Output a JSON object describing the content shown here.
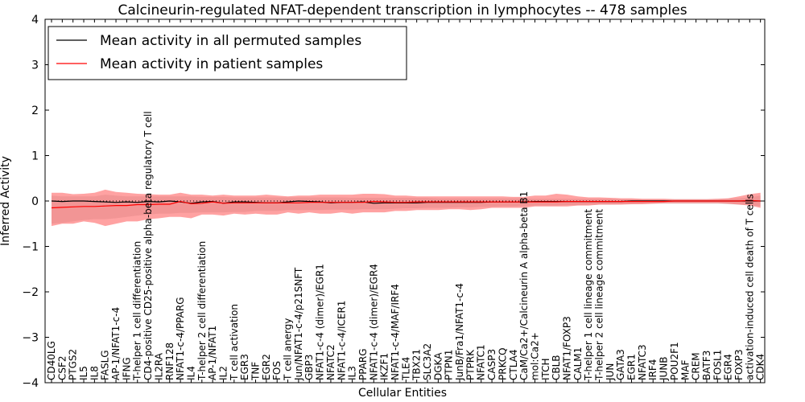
{
  "chart_data": {
    "type": "line",
    "title": "Calcineurin-regulated NFAT-dependent transcription in lymphocytes -- 478 samples",
    "xlabel": "Cellular Entities",
    "ylabel": "Inferred Activity",
    "ylim": [
      -4,
      4
    ],
    "yticks": [
      -4,
      -3,
      -2,
      -1,
      0,
      1,
      2,
      3,
      4
    ],
    "ytick_labels": [
      "−4",
      "−3",
      "−2",
      "−1",
      "0",
      "1",
      "2",
      "3",
      "4"
    ],
    "legend_position": "top-left",
    "reference_line": 0,
    "categories": [
      "CD40LG",
      "CSF2",
      "PTGS2",
      "IL5",
      "IL8",
      "FASLG",
      "AP-1/NFAT1-c-4",
      "IFNG",
      "T-helper 1 cell differentiation",
      "CD4-positive CD25-positive alpha-beta regulatory T cell",
      "IL2RA",
      "RNF128",
      "NFAT1-c-4/PPARG",
      "IL4",
      "T-helper 2 cell differentiation",
      "AP-1/NFAT1",
      "IL2",
      "T cell activation",
      "EGR3",
      "TNF",
      "EGR2",
      "FOS",
      "T cell anergy",
      "Jun/NFAT1-c-4/p21SNFT",
      "GBP3",
      "NFAT1-c-4 (dimer)/EGR1",
      "NFATC2",
      "NFAT1-c-4/ICER1",
      "IL3",
      "PPARG",
      "NFAT1-c-4 (dimer)/EGR4",
      "IKZF1",
      "NFAT1-c-4/MAF/IRF4",
      "TLE4",
      "TBX21",
      "SLC3A2",
      "DGKA",
      "PTPN1",
      "JunB/Fra1/NFAT1-c-4",
      "PTPRK",
      "NFATC1",
      "CASP3",
      "PRKCQ",
      "CTLA4",
      "CaM/Ca2+/Calcineurin A alpha-beta B1",
      "mol:Ca2+",
      "ITCH",
      "CBLB",
      "NFAT1/FOXP3",
      "CALM1",
      "T-helper 1 cell lineage commitment",
      "T-helper 2 cell lineage commitment",
      "JUN",
      "GATA3",
      "EGR1",
      "NFATC3",
      "IRF4",
      "JUNB",
      "POU2F1",
      "MAF",
      "CREM",
      "BATF3",
      "FOSL1",
      "EGR4",
      "FOXP3",
      "activation-induced cell death of T cells",
      "CDK4"
    ],
    "series": [
      {
        "name": "Mean activity in all permuted samples",
        "color": "#000000",
        "values": [
          0.0,
          -0.01,
          0.0,
          0.0,
          -0.01,
          -0.02,
          -0.03,
          -0.02,
          -0.03,
          -0.01,
          -0.02,
          0.0,
          -0.02,
          -0.05,
          -0.02,
          -0.01,
          -0.05,
          -0.02,
          -0.02,
          -0.03,
          -0.04,
          -0.04,
          -0.02,
          0.0,
          -0.01,
          -0.02,
          -0.04,
          -0.03,
          -0.03,
          -0.02,
          -0.05,
          -0.04,
          -0.04,
          -0.04,
          -0.04,
          -0.03,
          -0.03,
          -0.03,
          -0.03,
          -0.03,
          -0.03,
          -0.02,
          -0.02,
          -0.02,
          -0.02,
          -0.01,
          -0.01,
          -0.01,
          -0.01,
          -0.01,
          -0.01,
          -0.01,
          -0.01,
          -0.01,
          0.0,
          0.0,
          0.0,
          0.0,
          0.0,
          0.0,
          0.0,
          0.0,
          0.0,
          0.0,
          0.0,
          0.0,
          0.0
        ],
        "band_lower": [
          -0.5,
          -0.48,
          -0.45,
          -0.42,
          -0.4,
          -0.4,
          -0.38,
          -0.35,
          -0.32,
          -0.3,
          -0.28,
          -0.28,
          -0.26,
          -0.26,
          -0.25,
          -0.25,
          -0.25,
          -0.24,
          -0.24,
          -0.22,
          -0.22,
          -0.22,
          -0.2,
          -0.2,
          -0.2,
          -0.2,
          -0.19,
          -0.19,
          -0.19,
          -0.18,
          -0.18,
          -0.18,
          -0.17,
          -0.16,
          -0.16,
          -0.15,
          -0.15,
          -0.15,
          -0.14,
          -0.14,
          -0.13,
          -0.13,
          -0.12,
          -0.12,
          -0.11,
          -0.1,
          -0.1,
          -0.1,
          -0.09,
          -0.09,
          -0.08,
          -0.08,
          -0.08,
          -0.07,
          -0.07,
          -0.06,
          -0.06,
          -0.06,
          -0.06,
          -0.06,
          -0.06,
          -0.06,
          -0.06,
          -0.07,
          -0.08,
          -0.09,
          -0.12
        ],
        "band_upper": [
          0.12,
          0.1,
          0.1,
          0.1,
          0.1,
          0.14,
          0.12,
          0.1,
          0.1,
          0.1,
          0.1,
          0.1,
          0.1,
          0.1,
          0.09,
          0.09,
          0.09,
          0.08,
          0.08,
          0.08,
          0.08,
          0.08,
          0.08,
          0.08,
          0.08,
          0.08,
          0.08,
          0.08,
          0.07,
          0.07,
          0.07,
          0.07,
          0.07,
          0.07,
          0.07,
          0.07,
          0.06,
          0.06,
          0.06,
          0.06,
          0.06,
          0.06,
          0.06,
          0.06,
          0.06,
          0.05,
          0.05,
          0.05,
          0.05,
          0.05,
          0.05,
          0.05,
          0.05,
          0.04,
          0.04,
          0.04,
          0.04,
          0.04,
          0.04,
          0.04,
          0.04,
          0.04,
          0.04,
          0.05,
          0.06,
          0.08,
          0.12
        ]
      },
      {
        "name": "Mean activity in patient samples",
        "color": "#ff0000",
        "values": [
          -0.15,
          -0.14,
          -0.13,
          -0.12,
          -0.12,
          -0.11,
          -0.1,
          -0.1,
          -0.08,
          -0.08,
          -0.07,
          -0.07,
          -0.01,
          -0.06,
          -0.05,
          -0.02,
          -0.05,
          -0.04,
          -0.04,
          -0.04,
          -0.04,
          -0.04,
          -0.04,
          -0.04,
          -0.03,
          -0.03,
          -0.03,
          -0.03,
          -0.03,
          -0.03,
          -0.01,
          -0.02,
          -0.03,
          -0.03,
          -0.02,
          -0.02,
          -0.02,
          -0.02,
          -0.02,
          -0.02,
          -0.02,
          -0.02,
          -0.02,
          -0.02,
          -0.02,
          -0.02,
          -0.02,
          -0.02,
          -0.01,
          -0.01,
          -0.01,
          -0.01,
          -0.01,
          -0.01,
          -0.01,
          -0.01,
          -0.01,
          -0.01,
          0.0,
          0.0,
          0.0,
          0.0,
          0.0,
          0.0,
          0.0,
          0.01,
          0.0
        ],
        "band_lower": [
          -0.55,
          -0.5,
          -0.5,
          -0.45,
          -0.48,
          -0.55,
          -0.5,
          -0.45,
          -0.45,
          -0.4,
          -0.38,
          -0.35,
          -0.35,
          -0.38,
          -0.3,
          -0.3,
          -0.32,
          -0.28,
          -0.3,
          -0.28,
          -0.3,
          -0.3,
          -0.25,
          -0.28,
          -0.25,
          -0.28,
          -0.28,
          -0.25,
          -0.28,
          -0.25,
          -0.25,
          -0.25,
          -0.22,
          -0.22,
          -0.2,
          -0.2,
          -0.2,
          -0.18,
          -0.18,
          -0.2,
          -0.18,
          -0.15,
          -0.15,
          -0.15,
          -0.15,
          -0.12,
          -0.12,
          -0.12,
          -0.12,
          -0.1,
          -0.1,
          -0.08,
          -0.08,
          -0.08,
          -0.07,
          -0.07,
          -0.06,
          -0.05,
          -0.05,
          -0.05,
          -0.05,
          -0.05,
          -0.05,
          -0.06,
          -0.08,
          -0.1,
          -0.15
        ],
        "band_upper": [
          0.18,
          0.18,
          0.15,
          0.16,
          0.18,
          0.25,
          0.2,
          0.18,
          0.16,
          0.15,
          0.14,
          0.14,
          0.18,
          0.14,
          0.14,
          0.12,
          0.14,
          0.12,
          0.12,
          0.12,
          0.14,
          0.12,
          0.1,
          0.12,
          0.12,
          0.14,
          0.14,
          0.14,
          0.14,
          0.16,
          0.16,
          0.15,
          0.12,
          0.12,
          0.1,
          0.1,
          0.1,
          0.1,
          0.1,
          0.1,
          0.1,
          0.1,
          0.1,
          0.09,
          0.09,
          0.12,
          0.12,
          0.16,
          0.14,
          0.1,
          0.08,
          0.08,
          0.07,
          0.06,
          0.06,
          0.05,
          0.05,
          0.05,
          0.04,
          0.04,
          0.04,
          0.04,
          0.05,
          0.06,
          0.1,
          0.15,
          0.18
        ]
      }
    ]
  }
}
